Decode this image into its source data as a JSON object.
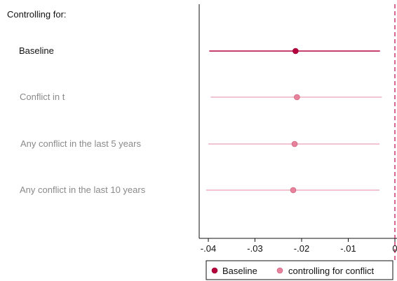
{
  "chart_data": {
    "type": "coefficient-plot",
    "title": "Controlling for:",
    "xlim": [
      -0.042,
      0.0
    ],
    "xticks": [
      {
        "value": -0.04,
        "label": "-.04"
      },
      {
        "value": -0.03,
        "label": "-.03"
      },
      {
        "value": -0.02,
        "label": "-.02"
      },
      {
        "value": -0.01,
        "label": "-.01"
      },
      {
        "value": 0,
        "label": "0"
      }
    ],
    "reference_line": 0,
    "rows": [
      {
        "label": "Baseline",
        "series": "Baseline",
        "estimate": -0.0213,
        "ci": [
          -0.0398,
          -0.0032
        ]
      },
      {
        "label": "Conflict in t",
        "series": "controlling for conflict",
        "estimate": -0.021,
        "ci": [
          -0.0395,
          -0.0028
        ]
      },
      {
        "label": "Any conflict in the last 5 years",
        "series": "controlling for conflict",
        "estimate": -0.0215,
        "ci": [
          -0.04,
          -0.0033
        ]
      },
      {
        "label": "Any conflict in the last 10 years",
        "series": "controlling for conflict",
        "estimate": -0.0218,
        "ci": [
          -0.0405,
          -0.0033
        ]
      }
    ],
    "legend": {
      "placement": "bottom-right",
      "entries": [
        {
          "name": "Baseline",
          "color": "#b5003c"
        },
        {
          "name": "controlling for conflict",
          "color": "#e8819c"
        }
      ]
    },
    "colors": {
      "baseline_marker": "#b5003c",
      "baseline_line": "#b5003c",
      "conflict_marker": "#e8819c",
      "conflict_line": "#e48aa4",
      "baseline_label": "#111111",
      "conflict_label": "#8a8a8a",
      "reference_line": "#c2185b"
    }
  }
}
